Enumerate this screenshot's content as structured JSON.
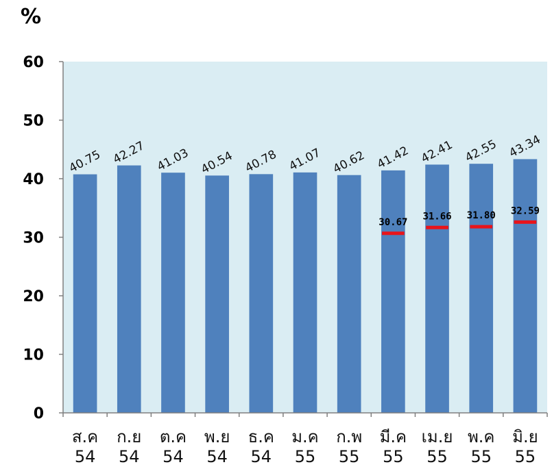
{
  "chart_data": {
    "type": "bar",
    "unit_label": "%",
    "categories": [
      [
        "ส.ค",
        "54"
      ],
      [
        "ก.ย",
        "54"
      ],
      [
        "ต.ค",
        "54"
      ],
      [
        "พ.ย",
        "54"
      ],
      [
        "ธ.ค",
        "54"
      ],
      [
        "ม.ค",
        "55"
      ],
      [
        "ก.พ",
        "55"
      ],
      [
        "มี.ค",
        "55"
      ],
      [
        "เม.ย",
        "55"
      ],
      [
        "พ.ค",
        "55"
      ],
      [
        "มิ.ย",
        "55"
      ]
    ],
    "series": [
      {
        "values": [
          40.75,
          42.27,
          41.03,
          40.54,
          40.78,
          41.07,
          40.62,
          41.42,
          42.41,
          42.55,
          43.34
        ],
        "labels": [
          "40.75",
          "42.27",
          "41.03",
          "40.54",
          "40.78",
          "41.07",
          "40.62",
          "41.42",
          "42.41",
          "42.55",
          "43.34"
        ],
        "color": "#4f81bd"
      },
      {
        "type": "marker",
        "values": [
          null,
          null,
          null,
          null,
          null,
          null,
          null,
          30.67,
          31.66,
          31.8,
          32.59
        ],
        "labels": [
          null,
          null,
          null,
          null,
          null,
          null,
          null,
          "30.67",
          "31.66",
          "31.80",
          "32.59"
        ],
        "color": "#e8141b"
      }
    ],
    "ylim": [
      0,
      60
    ],
    "yticks": [
      "0",
      "10",
      "20",
      "30",
      "40",
      "50",
      "60"
    ],
    "plot_background": "#daedf3",
    "grid": false
  }
}
